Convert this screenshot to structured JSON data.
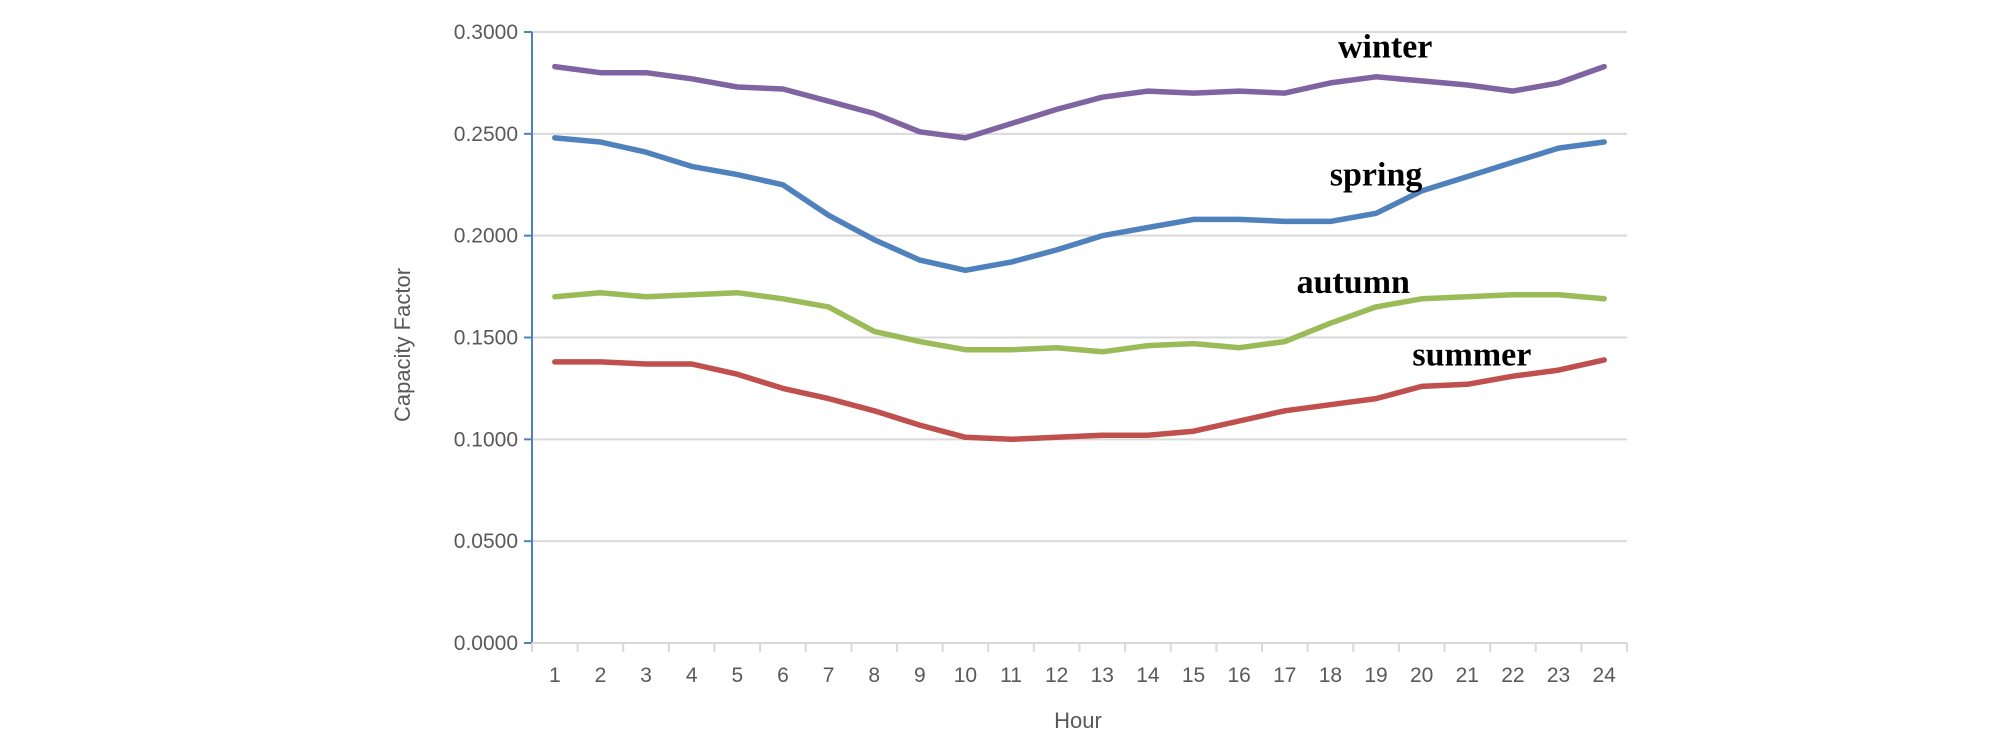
{
  "chart_data": {
    "type": "line",
    "title": "",
    "xlabel": "Hour",
    "ylabel": "Capacity Factor",
    "x": [
      1,
      2,
      3,
      4,
      5,
      6,
      7,
      8,
      9,
      10,
      11,
      12,
      13,
      14,
      15,
      16,
      17,
      18,
      19,
      20,
      21,
      22,
      23,
      24
    ],
    "x_tick_labels": [
      "1",
      "2",
      "3",
      "4",
      "5",
      "6",
      "7",
      "8",
      "9",
      "10",
      "11",
      "12",
      "13",
      "14",
      "15",
      "16",
      "17",
      "18",
      "19",
      "20",
      "21",
      "22",
      "23",
      "24"
    ],
    "ylim": [
      0,
      0.3
    ],
    "y_ticks": [
      0,
      0.05,
      0.1,
      0.15,
      0.2,
      0.25,
      0.3
    ],
    "y_tick_labels": [
      "0.0000",
      "0.0500",
      "0.1000",
      "0.1500",
      "0.2000",
      "0.2500",
      "0.3000"
    ],
    "grid": true,
    "legend": "none",
    "series": [
      {
        "name": "winter",
        "color": "#8064A2",
        "values": [
          0.283,
          0.28,
          0.28,
          0.277,
          0.273,
          0.272,
          0.266,
          0.26,
          0.251,
          0.248,
          0.255,
          0.262,
          0.268,
          0.271,
          0.27,
          0.271,
          0.27,
          0.275,
          0.278,
          0.276,
          0.274,
          0.271,
          0.275,
          0.283
        ]
      },
      {
        "name": "spring",
        "color": "#4F81BD",
        "values": [
          0.248,
          0.246,
          0.241,
          0.234,
          0.23,
          0.225,
          0.21,
          0.198,
          0.188,
          0.183,
          0.187,
          0.193,
          0.2,
          0.204,
          0.208,
          0.208,
          0.207,
          0.207,
          0.211,
          0.222,
          0.229,
          0.236,
          0.243,
          0.246
        ]
      },
      {
        "name": "autumn",
        "color": "#9BBB59",
        "values": [
          0.17,
          0.172,
          0.17,
          0.171,
          0.172,
          0.169,
          0.165,
          0.153,
          0.148,
          0.144,
          0.144,
          0.145,
          0.143,
          0.146,
          0.147,
          0.145,
          0.148,
          0.157,
          0.165,
          0.169,
          0.17,
          0.171,
          0.171,
          0.169
        ]
      },
      {
        "name": "summer",
        "color": "#C0504D",
        "values": [
          0.138,
          0.138,
          0.137,
          0.137,
          0.132,
          0.125,
          0.12,
          0.114,
          0.107,
          0.101,
          0.1,
          0.101,
          0.102,
          0.102,
          0.104,
          0.109,
          0.114,
          0.117,
          0.12,
          0.126,
          0.127,
          0.131,
          0.134,
          0.139
        ]
      }
    ]
  }
}
